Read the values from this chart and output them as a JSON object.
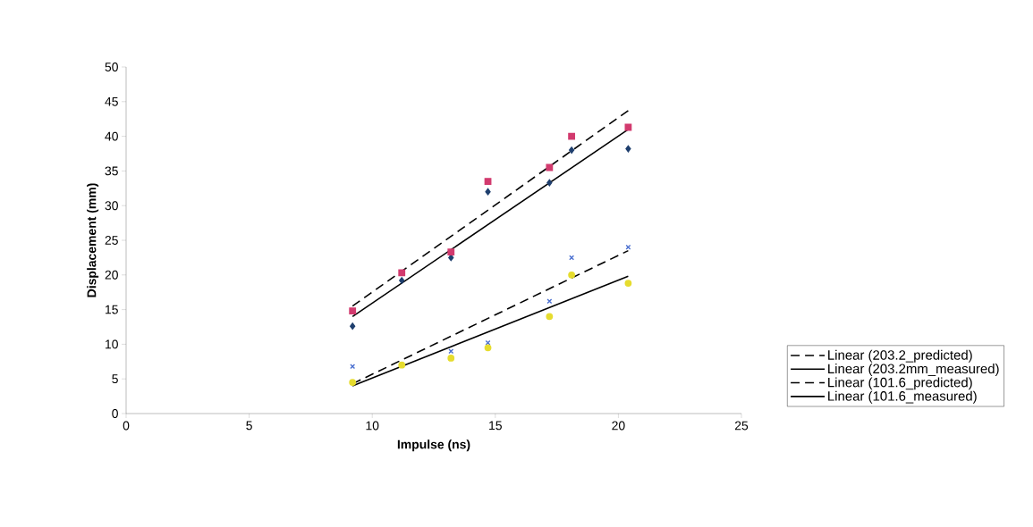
{
  "chart_data": {
    "type": "scatter",
    "xlabel": "Impulse (ns)",
    "ylabel": "Displacement (mm)",
    "xlim": [
      0,
      25
    ],
    "ylim": [
      0,
      50
    ],
    "xticks": [
      0,
      5,
      10,
      15,
      20,
      25
    ],
    "yticks": [
      0,
      5,
      10,
      15,
      20,
      25,
      30,
      35,
      40,
      45,
      50
    ],
    "legend": "bottom right",
    "series": [
      {
        "marker": "diamond",
        "color": "#1f3f6e",
        "x": [
          9.2,
          11.2,
          13.2,
          14.7,
          17.2,
          18.1,
          20.4
        ],
        "values": [
          12.6,
          19.2,
          22.5,
          32,
          33.3,
          38,
          38.2
        ]
      },
      {
        "marker": "square",
        "color": "#d23a6e",
        "x": [
          9.2,
          11.2,
          13.2,
          14.7,
          17.2,
          18.1,
          20.4
        ],
        "values": [
          14.8,
          20.3,
          23.3,
          33.5,
          35.5,
          40,
          41.3
        ]
      },
      {
        "marker": "cross",
        "color": "#4a6fd0",
        "x": [
          9.2,
          11.2,
          13.2,
          14.7,
          17.2,
          18.1,
          20.4
        ],
        "values": [
          6.8,
          null,
          9,
          10.2,
          16.2,
          22.5,
          24
        ]
      },
      {
        "marker": "circle",
        "color": "#e6dc2e",
        "x": [
          9.2,
          11.2,
          13.2,
          14.7,
          17.2,
          18.1,
          20.4
        ],
        "values": [
          4.5,
          7,
          8,
          9.5,
          14,
          20,
          18.8
        ]
      },
      {
        "type": "line",
        "name": "Linear (203.2_predicted)",
        "line_style": "dashed",
        "color": "#000000",
        "x": [
          9.2,
          20.4
        ],
        "values": [
          15.5,
          43.7
        ]
      },
      {
        "type": "line",
        "name": "Linear (203.2mm_measured)",
        "line_style": "solid",
        "color": "#000000",
        "x": [
          9.2,
          20.4
        ],
        "values": [
          14.0,
          41
        ]
      },
      {
        "type": "line",
        "name": "Linear (101.6_predicted)",
        "line_style": "dashed",
        "color": "#000000",
        "x": [
          9.2,
          20.4
        ],
        "values": [
          4.3,
          23.5
        ]
      },
      {
        "type": "line",
        "name": "Linear (101.6_measured)",
        "line_style": "solid",
        "color": "#000000",
        "x": [
          9.2,
          20.4
        ],
        "values": [
          4.0,
          19.8
        ]
      }
    ]
  }
}
